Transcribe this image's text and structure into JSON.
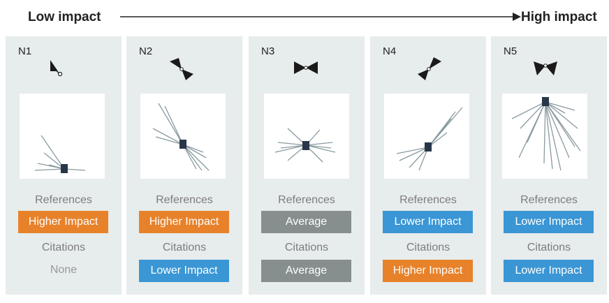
{
  "header": {
    "low_label": "Low impact",
    "high_label": "High impact"
  },
  "row_labels": {
    "references": "References",
    "citations": "Citations"
  },
  "colors": {
    "higher": "#e8822a",
    "lower": "#3a96d4",
    "average": "#868e8e",
    "panel_bg": "#e7ecec",
    "edge": "#8a9aa0",
    "node": "#283648",
    "glyph": "#1a1a1a"
  },
  "panels": [
    {
      "id": "N1",
      "references": {
        "text": "Higher Impact",
        "kind": "higher"
      },
      "citations": {
        "text": "None",
        "kind": "none"
      }
    },
    {
      "id": "N2",
      "references": {
        "text": "Higher Impact",
        "kind": "higher"
      },
      "citations": {
        "text": "Lower Impact",
        "kind": "lower"
      }
    },
    {
      "id": "N3",
      "references": {
        "text": "Average",
        "kind": "average"
      },
      "citations": {
        "text": "Average",
        "kind": "average"
      }
    },
    {
      "id": "N4",
      "references": {
        "text": "Lower Impact",
        "kind": "lower"
      },
      "citations": {
        "text": "Higher Impact",
        "kind": "higher"
      }
    },
    {
      "id": "N5",
      "references": {
        "text": "Lower Impact",
        "kind": "lower"
      },
      "citations": {
        "text": "Lower Impact",
        "kind": "lower"
      }
    }
  ]
}
